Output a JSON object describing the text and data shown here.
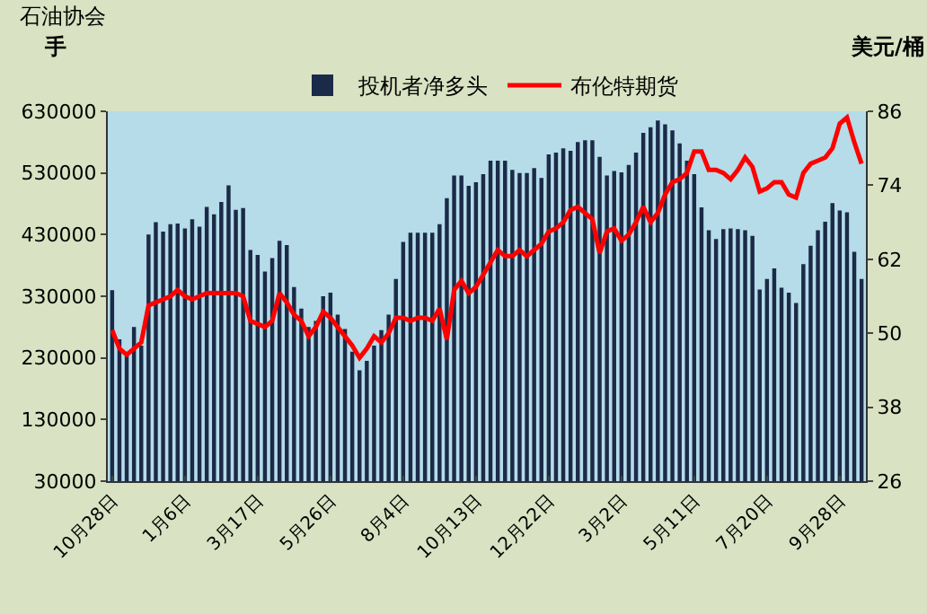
{
  "chart_data": {
    "type": "bar",
    "categories": [
      "10月28日",
      null,
      null,
      null,
      null,
      null,
      null,
      null,
      null,
      null,
      "1月6日",
      null,
      null,
      null,
      null,
      null,
      null,
      null,
      null,
      null,
      "3月17日",
      null,
      null,
      null,
      null,
      null,
      null,
      null,
      null,
      null,
      "5月26日",
      null,
      null,
      null,
      null,
      null,
      null,
      null,
      null,
      null,
      "8月4日",
      null,
      null,
      null,
      null,
      null,
      null,
      null,
      null,
      null,
      "10月13日",
      null,
      null,
      null,
      null,
      null,
      null,
      null,
      null,
      null,
      "12月22日",
      null,
      null,
      null,
      null,
      null,
      null,
      null,
      null,
      null,
      "3月2日",
      null,
      null,
      null,
      null,
      null,
      null,
      null,
      null,
      null,
      "5月11日",
      null,
      null,
      null,
      null,
      null,
      null,
      null,
      null,
      null,
      "7月20日",
      null,
      null,
      null,
      null,
      null,
      null,
      null,
      null,
      null,
      "9月28日",
      null,
      null,
      null
    ],
    "series": [
      {
        "name": "投机者净多头",
        "color": "#1b2a48",
        "values": [
          340000,
          260000,
          235000,
          280000,
          250000,
          430000,
          450000,
          435000,
          447000,
          448000,
          440000,
          455000,
          443000,
          475000,
          463000,
          483000,
          510000,
          470000,
          473000,
          405000,
          397000,
          370000,
          392000,
          420000,
          413000,
          345000,
          310000,
          280000,
          290000,
          330000,
          336000,
          300000,
          277000,
          240000,
          210000,
          225000,
          250000,
          275000,
          300000,
          358000,
          418000,
          433000,
          433000,
          433000,
          433000,
          447000,
          489000,
          526000,
          526000,
          509000,
          515000,
          528000,
          550000,
          550000,
          550000,
          535000,
          530000,
          530000,
          538000,
          522000,
          560000,
          563000,
          570000,
          566000,
          580000,
          583000,
          583000,
          556000,
          526000,
          533000,
          531000,
          543000,
          563000,
          595000,
          604000,
          615000,
          609000,
          599000,
          578000,
          550000,
          528000,
          474000,
          437000,
          423000,
          439000,
          440000,
          439000,
          437000,
          428000,
          341000,
          358000,
          375000,
          344000,
          336000,
          319000,
          382000,
          412000,
          437000,
          451000,
          481000,
          469000,
          466000,
          402000,
          358000
        ]
      },
      {
        "name": "布伦特期货",
        "type": "line",
        "axis": "y2",
        "color": "#ff0000",
        "values": [
          50.5,
          47.5,
          46.5,
          47.5,
          48.5,
          54.5,
          55,
          55.5,
          56,
          57,
          56,
          55.5,
          56,
          56.5,
          56.5,
          56.5,
          56.5,
          56.5,
          56,
          52,
          51.5,
          51,
          52,
          56.5,
          55,
          53,
          52,
          49.5,
          51,
          53.5,
          52.5,
          51,
          49.5,
          48,
          46,
          47.5,
          49.5,
          48.5,
          50,
          52.5,
          52.5,
          52,
          52.5,
          52.5,
          52,
          54,
          49,
          57,
          58.5,
          56.5,
          57.5,
          59.5,
          61.5,
          63.5,
          62.5,
          62.5,
          63.5,
          62.5,
          63.5,
          64.5,
          66.5,
          67,
          68,
          70,
          70.5,
          69.5,
          68.5,
          63,
          66.5,
          67,
          65,
          66,
          68,
          70.5,
          68,
          69.5,
          72.5,
          74.5,
          75,
          76,
          79.5,
          79.5,
          76.5,
          76.5,
          76,
          75,
          76.5,
          78.5,
          77,
          73,
          73.5,
          74.5,
          74.5,
          72.5,
          72,
          76,
          77.5,
          78,
          78.5,
          80,
          84,
          85,
          81,
          77.5
        ]
      }
    ],
    "ylabel": "手",
    "y2label": "美元/桶",
    "ylim": [
      30000,
      630000
    ],
    "yticks": [
      30000,
      130000,
      230000,
      330000,
      430000,
      530000,
      630000
    ],
    "y2lim": [
      26,
      86
    ],
    "y2ticks": [
      26,
      38,
      50,
      62,
      74,
      86
    ],
    "legend": "top",
    "grid": false,
    "annotations": [
      "石油协会"
    ]
  }
}
